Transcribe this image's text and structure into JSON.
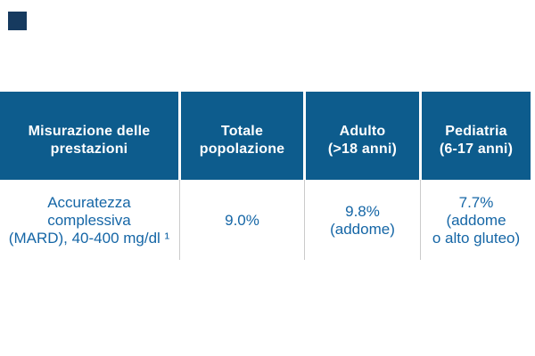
{
  "page": {
    "background": "#FFFFFF"
  },
  "colors": {
    "header_bg": "#0D5C8D",
    "header_text": "#FFFFFF",
    "data_text": "#1566A6",
    "column_divider": "#CBCBCB",
    "accent_square": "#163A5F"
  },
  "accent_square": {
    "present": true
  },
  "table": {
    "header": {
      "columns": [
        {
          "lines": [
            "Misurazione delle",
            "prestazioni"
          ]
        },
        {
          "lines": [
            "Totale",
            "popolazione"
          ]
        },
        {
          "lines": [
            "Adulto",
            "(>18 anni)"
          ]
        },
        {
          "lines": [
            "Pediatria",
            "(6-17 anni)"
          ]
        }
      ]
    },
    "rows": [
      {
        "cells": [
          {
            "lines": [
              "Accuratezza",
              "complessiva",
              "(MARD), 40-400 mg/dl ¹"
            ]
          },
          {
            "lines": [
              "9.0%"
            ]
          },
          {
            "lines": [
              "9.8%",
              "(addome)"
            ]
          },
          {
            "lines": [
              "7.7%",
              "(addome",
              "o alto gluteo)"
            ]
          }
        ]
      }
    ],
    "footnote_marker": "¹"
  },
  "chart_data": {
    "type": "table",
    "title": "",
    "columns": [
      "Misurazione delle prestazioni",
      "Totale popolazione",
      "Adulto (>18 anni)",
      "Pediatria (6-17 anni)"
    ],
    "rows": [
      [
        "Accuratezza complessiva (MARD), 40-400 mg/dl ¹",
        "9.0%",
        "9.8% (addome)",
        "7.7% (addome o alto gluteo)"
      ]
    ],
    "values_numeric": {
      "totale_popolazione_mard_pct": 9.0,
      "adulto_addome_mard_pct": 9.8,
      "pediatria_addome_o_alto_gluteo_mard_pct": 7.7
    }
  }
}
